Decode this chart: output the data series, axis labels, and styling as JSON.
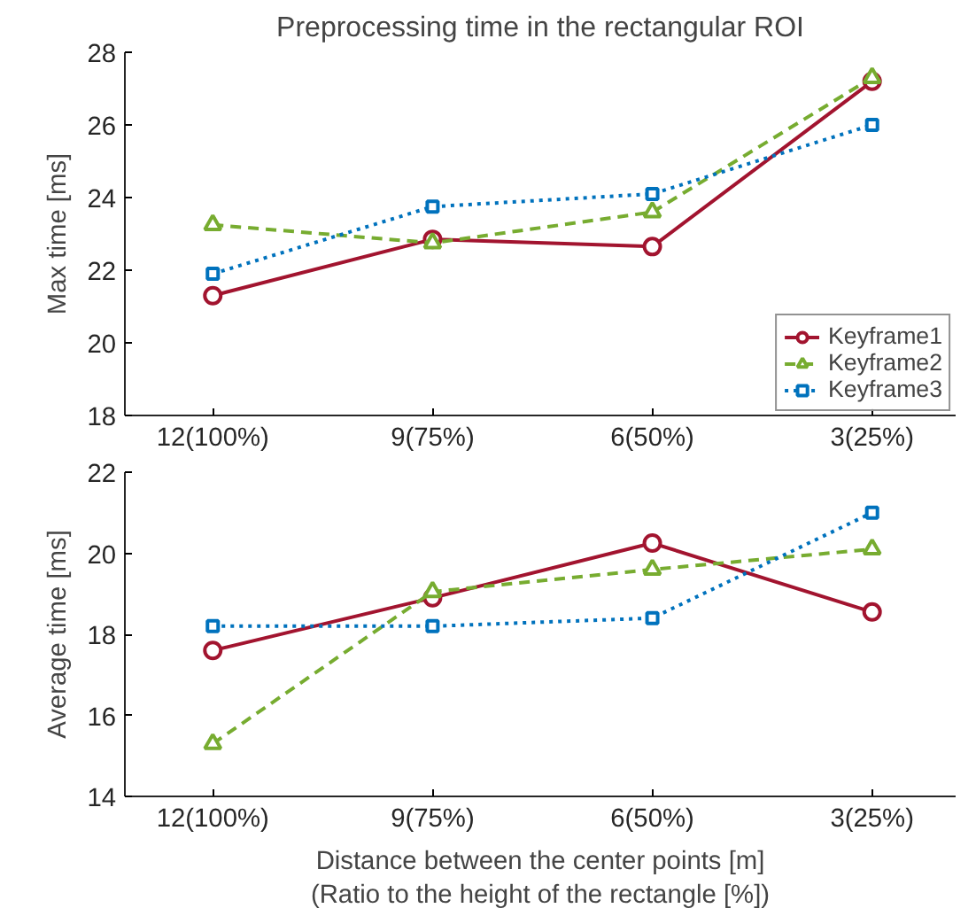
{
  "chart_data": [
    {
      "type": "line",
      "title": "Preprocessing time in the rectangular ROI",
      "ylabel": "Max time [ms]",
      "categories": [
        "12(100%)",
        "9(75%)",
        "6(50%)",
        "3(25%)"
      ],
      "ylim": [
        18,
        28
      ],
      "yticks": [
        18,
        20,
        22,
        24,
        26,
        28
      ],
      "grid": false,
      "legend": "bottom right",
      "series": [
        {
          "name": "Keyframe1",
          "color": "#a2142f",
          "marker": "circle",
          "line_style": "solid",
          "values": [
            21.3,
            22.85,
            22.65,
            27.2
          ]
        },
        {
          "name": "Keyframe2",
          "color": "#77ac30",
          "marker": "triangle",
          "line_style": "dashed",
          "values": [
            23.25,
            22.75,
            23.6,
            27.3
          ]
        },
        {
          "name": "Keyframe3",
          "color": "#0072bd",
          "marker": "square",
          "line_style": "dotted",
          "values": [
            21.9,
            23.75,
            24.1,
            26.0
          ]
        }
      ]
    },
    {
      "type": "line",
      "ylabel": "Average time [ms]",
      "xlabel": "Distance between the center points [m]\n(Ratio to the height of the rectangle [%])",
      "categories": [
        "12(100%)",
        "9(75%)",
        "6(50%)",
        "3(25%)"
      ],
      "ylim": [
        14,
        22
      ],
      "yticks": [
        14,
        16,
        18,
        20,
        22
      ],
      "grid": false,
      "legend": false,
      "series": [
        {
          "color": "#a2142f",
          "marker": "circle",
          "line_style": "solid",
          "values": [
            17.6,
            18.9,
            20.25,
            18.55
          ]
        },
        {
          "color": "#77ac30",
          "marker": "triangle",
          "line_style": "dashed",
          "values": [
            15.3,
            19.05,
            19.6,
            20.1
          ]
        },
        {
          "color": "#0072bd",
          "marker": "square",
          "line_style": "dotted",
          "values": [
            18.2,
            18.2,
            18.4,
            21.0
          ]
        }
      ]
    }
  ]
}
